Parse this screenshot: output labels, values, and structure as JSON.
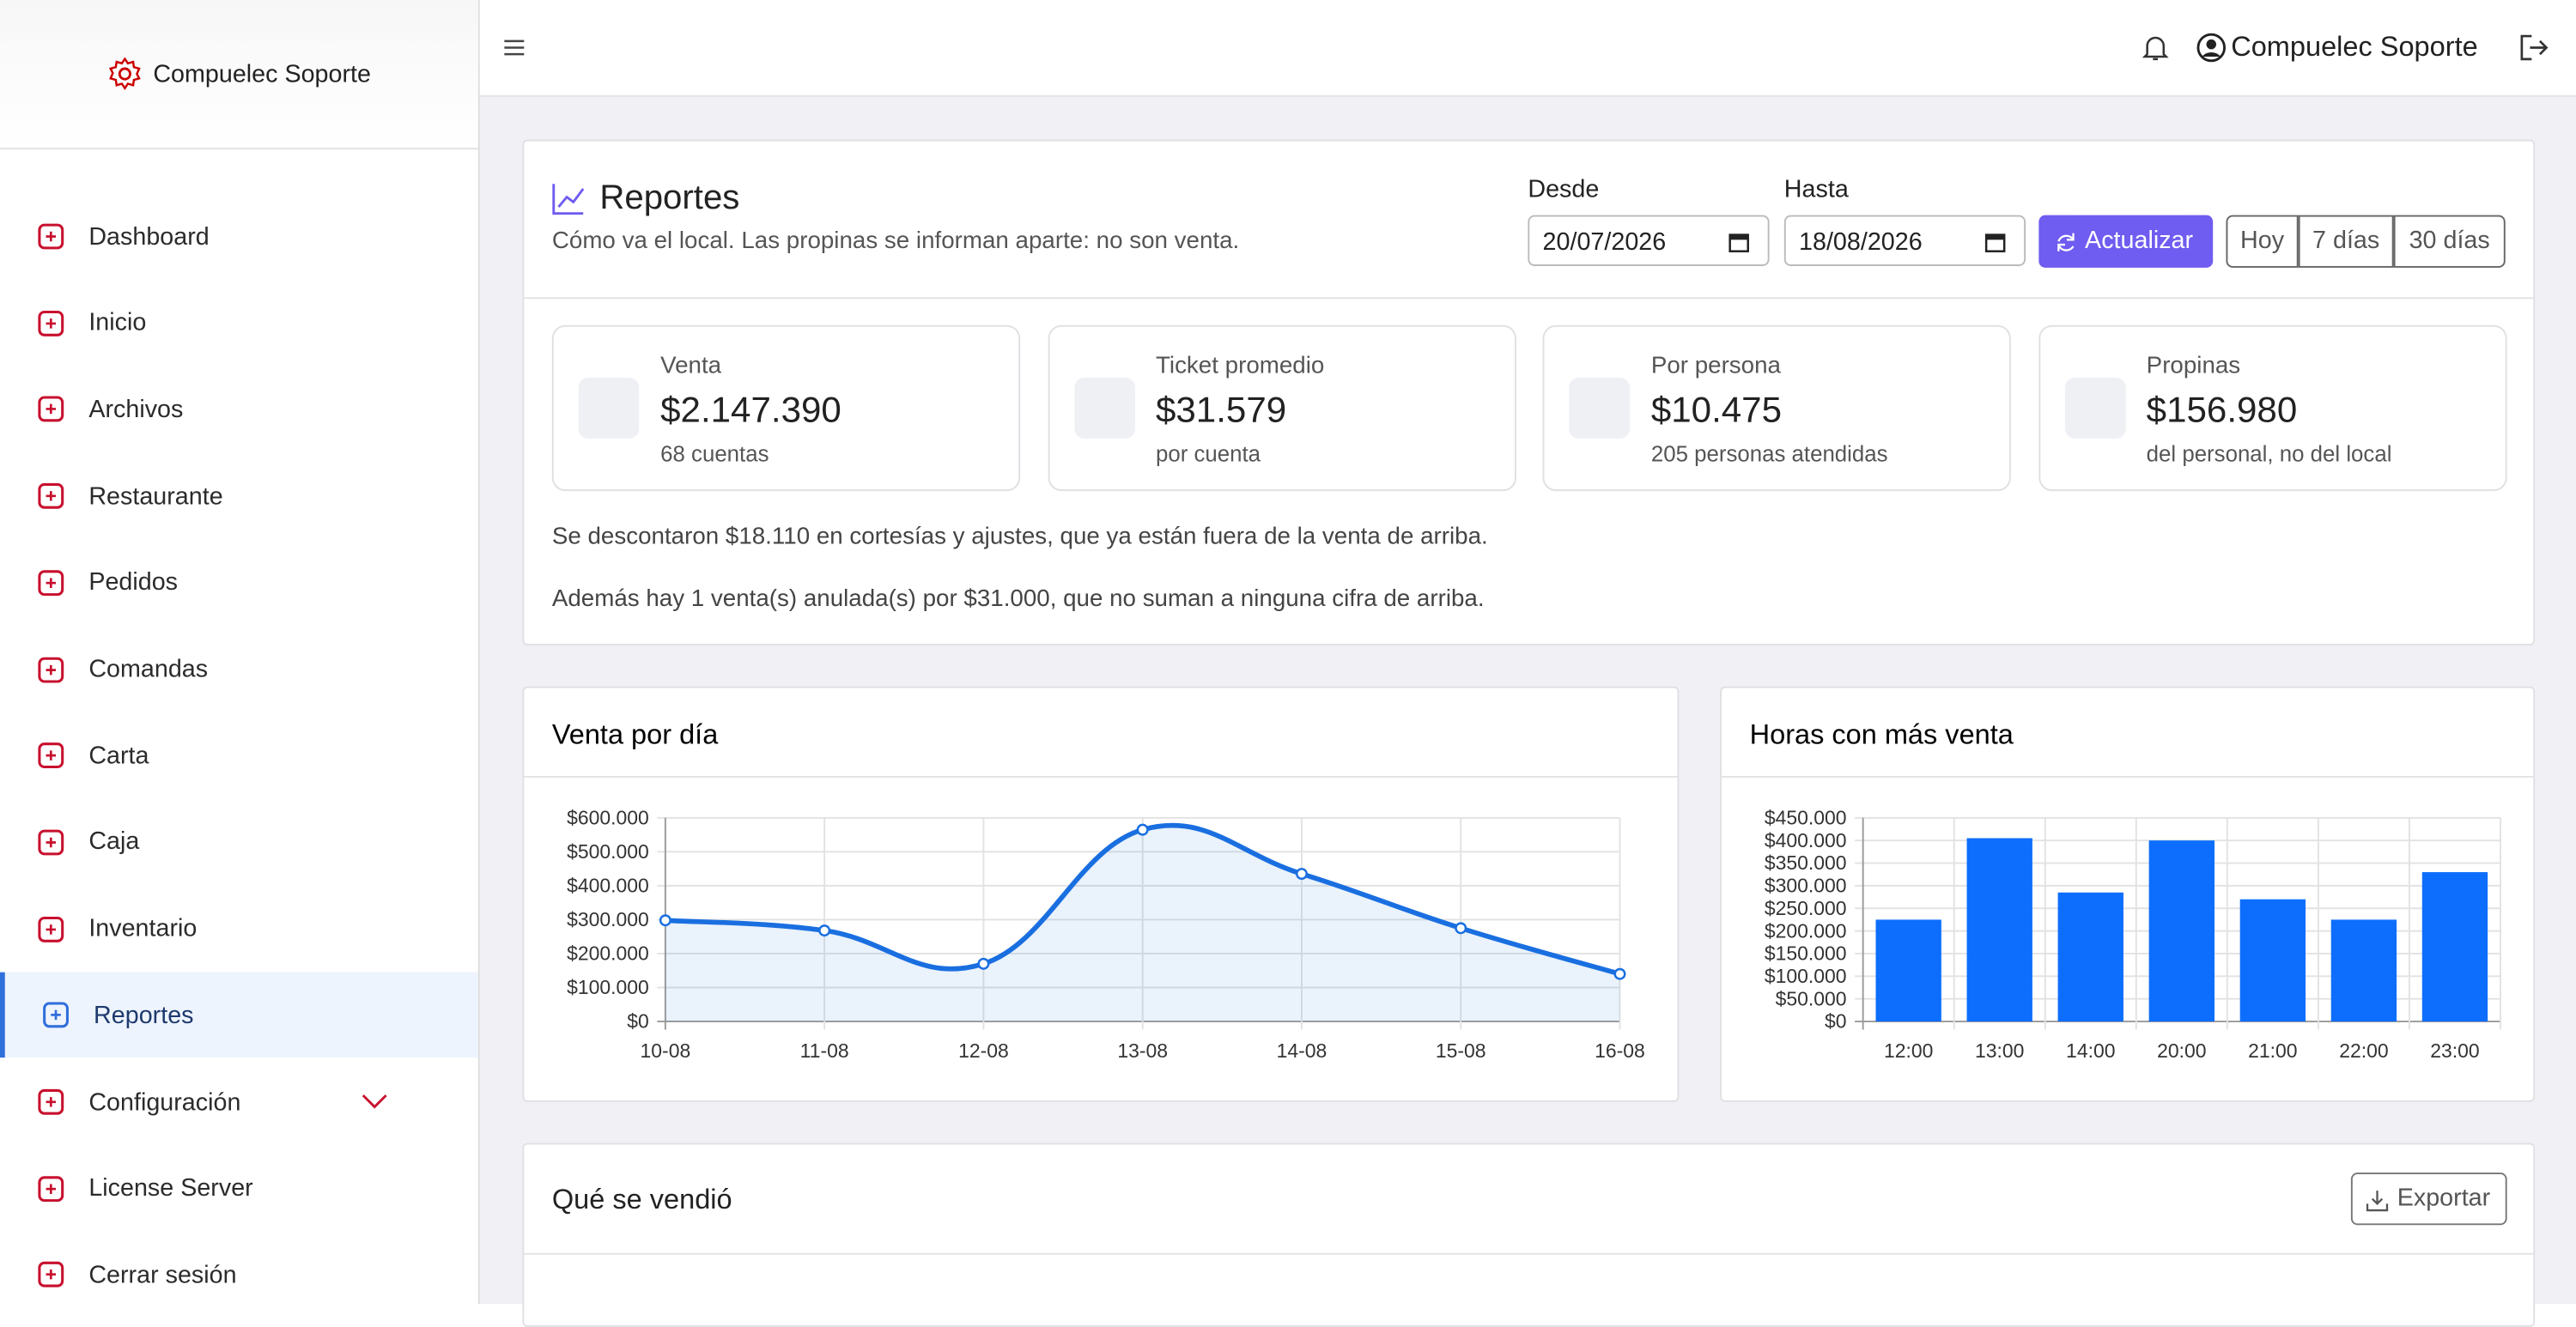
{
  "sidebar": {
    "brand": "Compuelec Soporte",
    "menu": [
      "Dashboard",
      "Inicio",
      "Archivos",
      "Restaurante",
      "Pedidos",
      "Comandas",
      "Carta",
      "Caja",
      "Inventario",
      "Reportes",
      "Configuración",
      "License Server",
      "Cerrar sesión"
    ],
    "active": 9
  },
  "topbar": {
    "user": "Compuelec Soporte"
  },
  "report": {
    "title": "Reportes",
    "subtitle": "Cómo va el local. Las propinas se informan aparte: no son venta.",
    "from_label": "Desde",
    "from_value": "20/07/2026",
    "to_label": "Hasta",
    "to_value": "18/08/2026",
    "refresh": "Actualizar",
    "ranges": [
      "Hoy",
      "7 días",
      "30 días"
    ]
  },
  "kpis": [
    {
      "label": "Venta",
      "value": "$2.147.390",
      "note": "68 cuentas"
    },
    {
      "label": "Ticket promedio",
      "value": "$31.579",
      "note": "por cuenta"
    },
    {
      "label": "Por persona",
      "value": "$10.475",
      "note": "205 personas atendidas"
    },
    {
      "label": "Propinas",
      "value": "$156.980",
      "note": "del personal, no del local"
    }
  ],
  "notes": [
    "Se descontaron $18.110 en cortesías y ajustes, que ya están fuera de la venta de arriba.",
    "Además hay 1 venta(s) anulada(s) por $31.000, que no suman a ninguna cifra de arriba."
  ],
  "chart_data": [
    {
      "type": "line",
      "title": "Venta por día",
      "categories": [
        "10-08",
        "11-08",
        "12-08",
        "13-08",
        "14-08",
        "15-08",
        "16-08"
      ],
      "values": [
        298000,
        268000,
        170000,
        565000,
        435000,
        275000,
        140000
      ],
      "color": "#1a6fe0",
      "ylim": [
        0,
        600000
      ],
      "yticks": [
        {
          "value": 0,
          "label": "$0"
        },
        {
          "value": 100000,
          "label": "$100.000"
        },
        {
          "value": 200000,
          "label": "$200.000"
        },
        {
          "value": 300000,
          "label": "$300.000"
        },
        {
          "value": 400000,
          "label": "$400.000"
        },
        {
          "value": 500000,
          "label": "$500.000"
        },
        {
          "value": 600000,
          "label": "$600.000"
        }
      ],
      "grid": true
    },
    {
      "type": "bar",
      "title": "Horas con más venta",
      "categories": [
        "12:00",
        "13:00",
        "14:00",
        "20:00",
        "21:00",
        "22:00",
        "23:00"
      ],
      "values": [
        225000,
        405000,
        285000,
        400000,
        270000,
        225000,
        330000
      ],
      "color": "#0d6efd",
      "ylim": [
        0,
        450000
      ],
      "yticks": [
        {
          "value": 0,
          "label": "$0"
        },
        {
          "value": 50000,
          "label": "$50.000"
        },
        {
          "value": 100000,
          "label": "$100.000"
        },
        {
          "value": 150000,
          "label": "$150.000"
        },
        {
          "value": 200000,
          "label": "$200.000"
        },
        {
          "value": 250000,
          "label": "$250.000"
        },
        {
          "value": 300000,
          "label": "$300.000"
        },
        {
          "value": 350000,
          "label": "$350.000"
        },
        {
          "value": 400000,
          "label": "$400.000"
        },
        {
          "value": 450000,
          "label": "$450.000"
        }
      ],
      "grid": true
    }
  ],
  "products": {
    "title": "Qué se vendió",
    "export": "Exportar"
  }
}
